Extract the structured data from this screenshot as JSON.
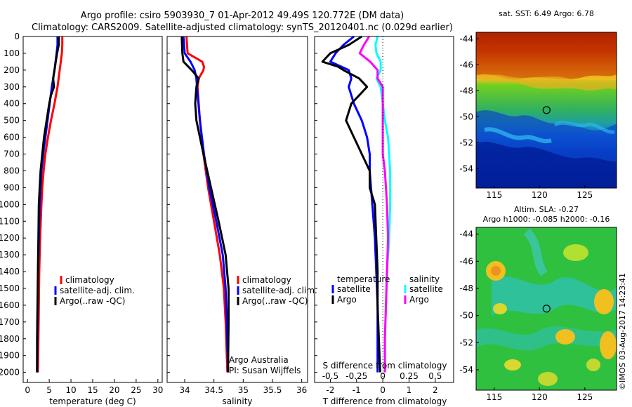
{
  "header": {
    "line1": "Argo profile: csiro 5903930_7 01-Apr-2012 49.49S 120.772E (DM data)",
    "line2": "Climatology: CARS2009. Satellite-adjusted climatology: synTS_20120401.nc (0.029d earlier)"
  },
  "colors": {
    "climatology": "#ff0000",
    "satellite_adj": "#0000ff",
    "argo": "#000000",
    "s_satellite": "#00ffff",
    "s_argo": "#ff00ff"
  },
  "annotations": {
    "argo_australia": "Argo Australia",
    "pi": "PI: Susan Wijffels",
    "imos_stamp": "©IMOS 03-Aug-2017 14:23:41"
  },
  "chart_data": [
    {
      "type": "line",
      "name": "temperature-panel",
      "xlabel": "temperature (deg C)",
      "ylabel": "",
      "xlim": [
        -1,
        31
      ],
      "ylim": [
        2060,
        0
      ],
      "x_ticks": [
        0,
        5,
        10,
        15,
        20,
        25,
        30
      ],
      "y_ticks": [
        0,
        100,
        200,
        300,
        400,
        500,
        600,
        700,
        800,
        900,
        1000,
        1100,
        1200,
        1300,
        1400,
        1500,
        1600,
        1700,
        1800,
        1900,
        2000
      ],
      "legend": [
        "climatology",
        "satellite-adj. clim.",
        "Argo(..raw -QC)"
      ],
      "legend_position": "bottom-right",
      "series": [
        {
          "name": "climatology",
          "color_key": "climatology",
          "depth": [
            0,
            50,
            100,
            200,
            300,
            400,
            500,
            600,
            700,
            800,
            900,
            1000,
            1200,
            1400,
            1600,
            1800,
            2000
          ],
          "values": [
            8.0,
            8.0,
            7.9,
            7.4,
            6.9,
            6.2,
            5.4,
            4.7,
            4.1,
            3.7,
            3.4,
            3.2,
            2.9,
            2.7,
            2.6,
            2.5,
            2.4
          ]
        },
        {
          "name": "satellite-adj. clim.",
          "color_key": "satellite_adj",
          "depth": [
            0,
            50,
            100,
            200,
            300,
            400,
            500,
            600,
            700,
            800,
            900,
            1000,
            1200,
            1400,
            1600,
            1800,
            2000
          ],
          "values": [
            6.9,
            6.9,
            6.7,
            6.2,
            5.6,
            5.1,
            4.6,
            4.1,
            3.6,
            3.2,
            3.0,
            2.8,
            2.6,
            2.45,
            2.35,
            2.25,
            2.2
          ]
        },
        {
          "name": "Argo(..raw -QC)",
          "color_key": "argo",
          "depth": [
            0,
            50,
            100,
            150,
            200,
            250,
            300,
            350,
            400,
            500,
            600,
            700,
            800,
            900,
            1000,
            1200,
            1400,
            1600,
            1800,
            2000
          ],
          "values": [
            7.2,
            7.2,
            6.8,
            6.5,
            6.2,
            5.9,
            6.1,
            5.4,
            5.0,
            4.4,
            3.8,
            3.4,
            3.0,
            2.8,
            2.6,
            2.5,
            2.4,
            2.3,
            2.2,
            2.2
          ]
        }
      ]
    },
    {
      "type": "line",
      "name": "salinity-panel",
      "xlabel": "salinity",
      "ylabel": "",
      "xlim": [
        33.7,
        36.1
      ],
      "ylim": [
        2060,
        0
      ],
      "x_ticks": [
        34,
        34.5,
        35,
        35.5,
        36
      ],
      "legend": [
        "climatology",
        "satellite-adj. clim.",
        "Argo(..raw -QC)"
      ],
      "legend_position": "bottom-right",
      "series": [
        {
          "name": "climatology",
          "color_key": "climatology",
          "depth": [
            0,
            100,
            150,
            180,
            200,
            250,
            300,
            500,
            700,
            900,
            1100,
            1300,
            1500,
            1700,
            2000
          ],
          "values": [
            34.03,
            34.05,
            34.3,
            34.33,
            34.32,
            34.24,
            34.22,
            34.26,
            34.32,
            34.4,
            34.5,
            34.6,
            34.67,
            34.7,
            34.73
          ]
        },
        {
          "name": "satellite-adj. clim.",
          "color_key": "satellite_adj",
          "depth": [
            0,
            100,
            150,
            200,
            250,
            300,
            500,
            700,
            900,
            1100,
            1300,
            1500,
            1700,
            2000
          ],
          "values": [
            33.98,
            34.0,
            34.1,
            34.17,
            34.2,
            34.21,
            34.26,
            34.33,
            34.42,
            34.54,
            34.65,
            34.7,
            34.72,
            34.74
          ]
        },
        {
          "name": "Argo(..raw -QC)",
          "color_key": "argo",
          "depth": [
            0,
            100,
            150,
            200,
            250,
            300,
            400,
            500,
            700,
            900,
            1100,
            1300,
            1500,
            1700,
            2000
          ],
          "values": [
            33.95,
            33.96,
            33.98,
            34.12,
            34.24,
            34.2,
            34.18,
            34.2,
            34.32,
            34.45,
            34.58,
            34.7,
            34.75,
            34.75,
            34.74
          ]
        }
      ]
    },
    {
      "type": "line",
      "name": "difference-panel",
      "xlabel": "T difference from climatology",
      "top_label": "S difference from climatology",
      "xlim": [
        -2.6,
        2.7
      ],
      "ylim": [
        2060,
        0
      ],
      "x_ticks": [
        -2,
        -1,
        0,
        1,
        2
      ],
      "s_ticks": [
        "-0.5",
        "-0.25",
        "0",
        "0.25",
        "0.5"
      ],
      "s_scale": 4,
      "zero_line": true,
      "legend_temperature_title": "temperature",
      "legend_salinity_title": "salinity",
      "legend_temperature": [
        "satellite",
        "Argo"
      ],
      "legend_salinity": [
        "satellite",
        "Argo"
      ],
      "series": [
        {
          "name": "satellite",
          "group": "temperature",
          "color_key": "satellite_adj",
          "depth": [
            0,
            50,
            100,
            150,
            200,
            250,
            300,
            400,
            500,
            600,
            700,
            800,
            1000,
            1200,
            1400,
            1600,
            1800,
            2000
          ],
          "values": [
            -1.1,
            -1.5,
            -1.8,
            -2.0,
            -1.3,
            -1.2,
            -1.3,
            -1.1,
            -0.8,
            -0.6,
            -0.5,
            -0.5,
            -0.4,
            -0.3,
            -0.25,
            -0.2,
            -0.2,
            -0.2
          ]
        },
        {
          "name": "Argo",
          "group": "temperature",
          "color_key": "argo",
          "depth": [
            0,
            50,
            100,
            150,
            180,
            200,
            250,
            300,
            350,
            400,
            500,
            600,
            700,
            800,
            900,
            1000,
            1200,
            1400,
            1600,
            1800,
            2000
          ],
          "values": [
            -0.8,
            -1.3,
            -2.0,
            -2.3,
            -1.7,
            -1.5,
            -0.9,
            -0.6,
            -0.9,
            -1.2,
            -1.4,
            -1.1,
            -0.8,
            -0.5,
            -0.5,
            -0.3,
            -0.25,
            -0.2,
            -0.2,
            -0.15,
            -0.1
          ]
        },
        {
          "name": "satellite",
          "group": "salinity",
          "color_key": "s_satellite",
          "depth": [
            0,
            50,
            100,
            150,
            200,
            250,
            300,
            400,
            500,
            600,
            700,
            800,
            1000,
            1200,
            1400,
            1600,
            1800,
            2000
          ],
          "values": [
            -0.05,
            -0.07,
            -0.06,
            -0.02,
            -0.02,
            -0.06,
            -0.02,
            0.0,
            0.02,
            0.05,
            0.06,
            0.07,
            0.07,
            0.06,
            0.04,
            0.03,
            0.02,
            0.02
          ]
        },
        {
          "name": "Argo",
          "group": "salinity",
          "color_key": "s_argo",
          "depth": [
            0,
            50,
            100,
            150,
            200,
            250,
            300,
            400,
            500,
            600,
            700,
            800,
            1000,
            1200,
            1400,
            1600,
            1800,
            2000
          ],
          "values": [
            -0.13,
            -0.18,
            -0.22,
            -0.12,
            -0.05,
            -0.05,
            0.0,
            0.0,
            0.0,
            0.0,
            0.0,
            0.02,
            0.04,
            0.05,
            0.04,
            0.03,
            0.02,
            0.02
          ]
        }
      ]
    },
    {
      "type": "heatmap",
      "name": "sst-map",
      "title": "sat. SST: 6.49 Argo: 6.78",
      "xlim": [
        113,
        128.5
      ],
      "ylim": [
        -55.5,
        -43.5
      ],
      "x_ticks": [
        115,
        120,
        125
      ],
      "y_ticks": [
        -44,
        -46,
        -48,
        -50,
        -52,
        -54
      ],
      "marker": {
        "lon": 120.772,
        "lat": -49.49
      }
    },
    {
      "type": "heatmap",
      "name": "sla-map",
      "title_line1": "Altim. SLA: -0.27",
      "title_line2": "Argo h1000: -0.085 h2000: -0.16",
      "xlim": [
        113,
        128.5
      ],
      "ylim": [
        -55.5,
        -43.5
      ],
      "x_ticks": [
        115,
        120,
        125
      ],
      "y_ticks": [
        -44,
        -46,
        -48,
        -50,
        -52,
        -54
      ],
      "marker": {
        "lon": 120.772,
        "lat": -49.49
      }
    }
  ]
}
